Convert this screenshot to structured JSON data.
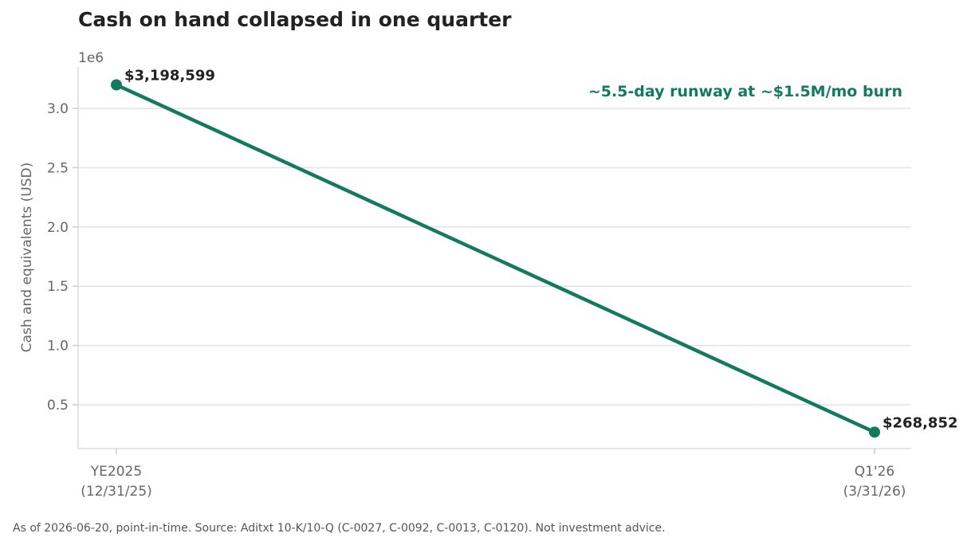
{
  "chart_data": {
    "type": "line",
    "title": "Cash on hand collapsed in one quarter",
    "ylabel": "Cash and equivalents (USD)",
    "xlabel": "",
    "y_scale_label": "1e6",
    "x": [
      "YE2025\n(12/31/25)",
      "Q1'26\n(3/31/26)"
    ],
    "x_tick_lines": [
      [
        "YE2025",
        "(12/31/25)"
      ],
      [
        "Q1'26",
        "(3/31/26)"
      ]
    ],
    "values": [
      3198599,
      268852
    ],
    "data_labels": [
      "$3,198,599",
      "$268,852"
    ],
    "ylim": [
      130000,
      3350000
    ],
    "y_ticks": [
      500000,
      1000000,
      1500000,
      2000000,
      2500000,
      3000000
    ],
    "y_tick_labels": [
      "0.5",
      "1.0",
      "1.5",
      "2.0",
      "2.5",
      "3.0"
    ],
    "grid": "horizontal",
    "series_color": "#137a60",
    "annotation": "~5.5-day runway at ~$1.5M/mo burn"
  },
  "footnote": "As of 2026-06-20, point-in-time. Source: Aditxt 10-K/10-Q (C-0027, C-0092, C-0013, C-0120). Not investment advice."
}
